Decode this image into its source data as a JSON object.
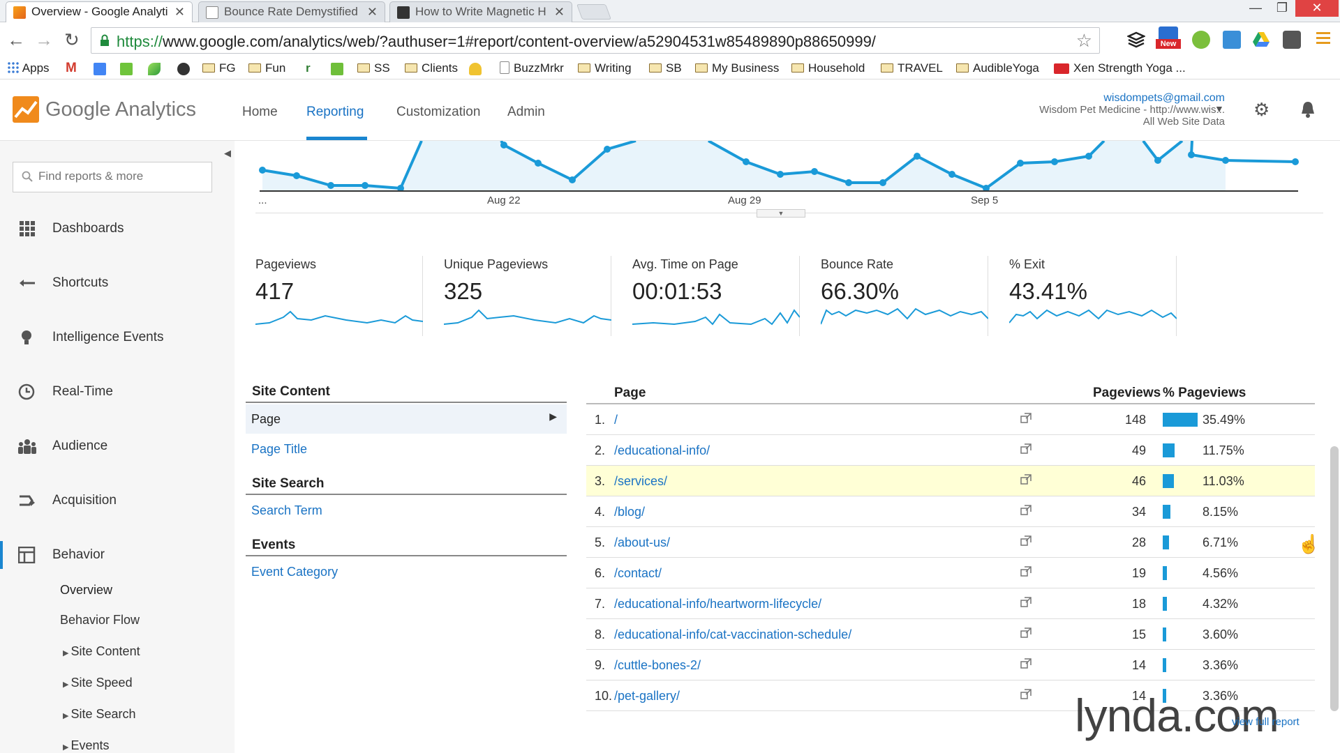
{
  "browser": {
    "tabs": [
      {
        "title": "Overview - Google Analyti",
        "active": true
      },
      {
        "title": "Bounce Rate Demystified",
        "active": false
      },
      {
        "title": "How to Write Magnetic H",
        "active": false
      }
    ],
    "url_scheme": "https://",
    "url_rest": "www.google.com/analytics/web/?authuser=1#report/content-overview/a52904531w85489890p88650999/",
    "new_badge": "New"
  },
  "bookmarks": [
    "Apps",
    "FG",
    "Fun",
    "SS",
    "Clients",
    "BuzzMrkr",
    "Writing",
    "SB",
    "My Business",
    "Household",
    "TRAVEL",
    "AudibleYoga",
    "Xen Strength Yoga ..."
  ],
  "ga": {
    "brand": "Google Analytics",
    "nav": [
      "Home",
      "Reporting",
      "Customization",
      "Admin"
    ],
    "account": {
      "email": "wisdompets@gmail.com",
      "property": "Wisdom Pet Medicine - http://www.wis...",
      "view": "All Web Site Data"
    }
  },
  "sidebar": {
    "search_placeholder": "Find reports & more",
    "items": [
      "Dashboards",
      "Shortcuts",
      "Intelligence Events",
      "Real-Time",
      "Audience",
      "Acquisition",
      "Behavior"
    ],
    "behavior_sub": [
      "Overview",
      "Behavior Flow",
      "Site Content",
      "Site Speed",
      "Site Search",
      "Events"
    ]
  },
  "chart": {
    "x_labels": [
      "...",
      "Aug 22",
      "Aug 29",
      "Sep 5"
    ]
  },
  "metrics": [
    {
      "title": "Pageviews",
      "value": "417"
    },
    {
      "title": "Unique Pageviews",
      "value": "325"
    },
    {
      "title": "Avg. Time on Page",
      "value": "00:01:53"
    },
    {
      "title": "Bounce Rate",
      "value": "66.30%"
    },
    {
      "title": "% Exit",
      "value": "43.41%"
    }
  ],
  "site_panel": {
    "site_content": "Site Content",
    "page": "Page",
    "page_title": "Page Title",
    "site_search": "Site Search",
    "search_term": "Search Term",
    "events": "Events",
    "event_category": "Event Category"
  },
  "table": {
    "headers": {
      "page": "Page",
      "pageviews": "Pageviews",
      "pct": "% Pageviews"
    },
    "rows": [
      {
        "n": "1.",
        "page": "/",
        "pv": "148",
        "pct": "35.49%",
        "frac": 0.3549
      },
      {
        "n": "2.",
        "page": "/educational-info/",
        "pv": "49",
        "pct": "11.75%",
        "frac": 0.1175
      },
      {
        "n": "3.",
        "page": "/services/",
        "pv": "46",
        "pct": "11.03%",
        "frac": 0.1103
      },
      {
        "n": "4.",
        "page": "/blog/",
        "pv": "34",
        "pct": "8.15%",
        "frac": 0.0815
      },
      {
        "n": "5.",
        "page": "/about-us/",
        "pv": "28",
        "pct": "6.71%",
        "frac": 0.0671
      },
      {
        "n": "6.",
        "page": "/contact/",
        "pv": "19",
        "pct": "4.56%",
        "frac": 0.0456
      },
      {
        "n": "7.",
        "page": "/educational-info/heartworm-lifecycle/",
        "pv": "18",
        "pct": "4.32%",
        "frac": 0.0432
      },
      {
        "n": "8.",
        "page": "/educational-info/cat-vaccination-schedule/",
        "pv": "15",
        "pct": "3.60%",
        "frac": 0.036
      },
      {
        "n": "9.",
        "page": "/cuttle-bones-2/",
        "pv": "14",
        "pct": "3.36%",
        "frac": 0.0336
      },
      {
        "n": "10.",
        "page": "/pet-gallery/",
        "pv": "14",
        "pct": "3.36%",
        "frac": 0.0336
      }
    ],
    "view_full": "view full report"
  },
  "watermark": "lynda.com",
  "colors": {
    "accent": "#1a86d0",
    "link": "#1a73c4",
    "highlight": "#ffffd6",
    "bar": "#1a9ad8"
  }
}
